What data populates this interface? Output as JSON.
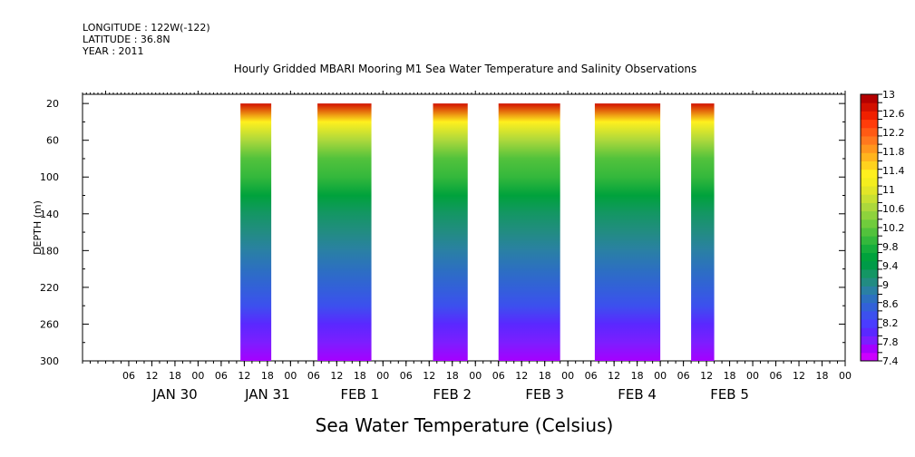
{
  "header": {
    "longitude": "LONGITUDE : 122W(-122)",
    "latitude": "LATITUDE : 36.8N",
    "year": "YEAR : 2011"
  },
  "chart_data": {
    "type": "heatmap",
    "title": "Hourly Gridded MBARI Mooring M1 Sea Water Temperature and Salinity Observations",
    "xlabel": "Sea Water Temperature (Celsius)",
    "ylabel": "DEPTH (m)",
    "ylim": [
      300,
      10
    ],
    "y_ticks": [
      20,
      60,
      100,
      140,
      180,
      220,
      260,
      300
    ],
    "x_range_hours": [
      0,
      198
    ],
    "x_start_date": "2011-01-29 18:00",
    "x_hour_ticks": [
      {
        "h": 12,
        "label": "06"
      },
      {
        "h": 18,
        "label": "12"
      },
      {
        "h": 24,
        "label": "18"
      },
      {
        "h": 30,
        "label": "00"
      },
      {
        "h": 36,
        "label": "06"
      },
      {
        "h": 42,
        "label": "12"
      },
      {
        "h": 48,
        "label": "18"
      },
      {
        "h": 54,
        "label": "00"
      },
      {
        "h": 60,
        "label": "06"
      },
      {
        "h": 66,
        "label": "12"
      },
      {
        "h": 72,
        "label": "18"
      },
      {
        "h": 78,
        "label": "00"
      },
      {
        "h": 84,
        "label": "06"
      },
      {
        "h": 90,
        "label": "12"
      },
      {
        "h": 96,
        "label": "18"
      },
      {
        "h": 102,
        "label": "00"
      },
      {
        "h": 108,
        "label": "06"
      },
      {
        "h": 114,
        "label": "12"
      },
      {
        "h": 120,
        "label": "18"
      },
      {
        "h": 126,
        "label": "00"
      },
      {
        "h": 132,
        "label": "06"
      },
      {
        "h": 138,
        "label": "12"
      },
      {
        "h": 144,
        "label": "18"
      },
      {
        "h": 150,
        "label": "00"
      },
      {
        "h": 156,
        "label": "06"
      },
      {
        "h": 162,
        "label": "12"
      },
      {
        "h": 168,
        "label": "18"
      },
      {
        "h": 174,
        "label": "00"
      },
      {
        "h": 180,
        "label": "06"
      },
      {
        "h": 186,
        "label": "12"
      },
      {
        "h": 192,
        "label": "18"
      },
      {
        "h": 198,
        "label": "00"
      }
    ],
    "x_date_labels": [
      {
        "h": 24,
        "label": "JAN 30"
      },
      {
        "h": 48,
        "label": "JAN 31"
      },
      {
        "h": 72,
        "label": "FEB  1"
      },
      {
        "h": 96,
        "label": "FEB  2"
      },
      {
        "h": 120,
        "label": "FEB  3"
      },
      {
        "h": 144,
        "label": "FEB  4"
      },
      {
        "h": 168,
        "label": "FEB  5"
      }
    ],
    "data_blocks_hours": [
      [
        41,
        49
      ],
      [
        61,
        75
      ],
      [
        91,
        100
      ],
      [
        108,
        124
      ],
      [
        133,
        150
      ],
      [
        158,
        164
      ]
    ],
    "depth_profile": {
      "depth_m": [
        20,
        40,
        60,
        80,
        100,
        120,
        140,
        160,
        180,
        200,
        220,
        240,
        260,
        280,
        300
      ],
      "temperature_c": [
        12.7,
        11.4,
        10.6,
        10.2,
        9.9,
        9.6,
        9.3,
        9.1,
        8.9,
        8.7,
        8.5,
        8.3,
        8.0,
        7.8,
        7.6
      ]
    },
    "colorbar": {
      "min": 7.4,
      "max": 13.0,
      "step": 0.2,
      "labels": [
        "13",
        "12.6",
        "12.2",
        "11.8",
        "11.4",
        "11",
        "10.6",
        "10.2",
        "9.8",
        "9.4",
        "9",
        "8.6",
        "8.2",
        "7.8",
        "7.4"
      ],
      "colors": [
        "#cc00ff",
        "#a500ff",
        "#7c1eff",
        "#5a28ff",
        "#4a3cff",
        "#3c50ee",
        "#3261d8",
        "#2c70c0",
        "#2a80a4",
        "#228c82",
        "#149664",
        "#009b48",
        "#00a23c",
        "#16ad3c",
        "#34b83c",
        "#52c23c",
        "#70cc3c",
        "#8ed23c",
        "#acd83c",
        "#c8e032",
        "#e2e628",
        "#f4ee1e",
        "#fff01e",
        "#ffd21e",
        "#ffb41e",
        "#ff961e",
        "#ff781e",
        "#ff5a14",
        "#ff3c0a",
        "#f02000",
        "#d21000",
        "#b40000"
      ]
    }
  }
}
